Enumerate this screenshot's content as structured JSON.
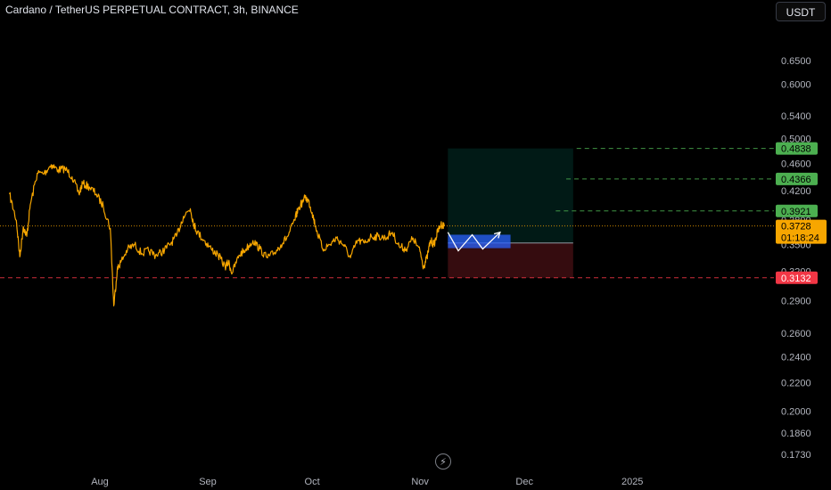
{
  "header": {
    "title": "Cardano / TetherUS PERPETUAL CONTRACT, 3h, BINANCE"
  },
  "controls": {
    "currency": "USDT"
  },
  "colors": {
    "price": "#f7a600",
    "target": "#4caf50",
    "stop": "#f23645",
    "position": "#2962ff"
  },
  "icons": {
    "bottom": "lightning-bolt-icon"
  },
  "chart_data": {
    "type": "line",
    "y_scale": "log",
    "y_ticks": [
      {
        "value": 0.65,
        "label": "0.6500"
      },
      {
        "value": 0.6,
        "label": "0.6000"
      },
      {
        "value": 0.54,
        "label": "0.5400"
      },
      {
        "value": 0.5,
        "label": "0.5000"
      },
      {
        "value": 0.46,
        "label": "0.4600"
      },
      {
        "value": 0.42,
        "label": "0.4200"
      },
      {
        "value": 0.38,
        "label": "0.3800"
      },
      {
        "value": 0.35,
        "label": "0.3500"
      },
      {
        "value": 0.32,
        "label": "0.3200"
      },
      {
        "value": 0.29,
        "label": "0.2900"
      },
      {
        "value": 0.26,
        "label": "0.2600"
      },
      {
        "value": 0.24,
        "label": "0.2400"
      },
      {
        "value": 0.22,
        "label": "0.2200"
      },
      {
        "value": 0.2,
        "label": "0.2000"
      },
      {
        "value": 0.186,
        "label": "0.1860"
      },
      {
        "value": 0.173,
        "label": "0.1730"
      }
    ],
    "x_ticks": [
      {
        "date": "2024-08-01",
        "label": "Aug"
      },
      {
        "date": "2024-09-01",
        "label": "Sep"
      },
      {
        "date": "2024-10-01",
        "label": "Oct"
      },
      {
        "date": "2024-11-01",
        "label": "Nov"
      },
      {
        "date": "2024-12-01",
        "label": "Dec"
      },
      {
        "date": "2025-01-01",
        "label": "2025"
      }
    ],
    "series": [
      {
        "points": [
          [
            "2024-07-06",
            0.415
          ],
          [
            "2024-07-08",
            0.38
          ],
          [
            "2024-07-09",
            0.336
          ],
          [
            "2024-07-10",
            0.372
          ],
          [
            "2024-07-11",
            0.36
          ],
          [
            "2024-07-12",
            0.4
          ],
          [
            "2024-07-14",
            0.445
          ],
          [
            "2024-07-16",
            0.445
          ],
          [
            "2024-07-18",
            0.458
          ],
          [
            "2024-07-20",
            0.45
          ],
          [
            "2024-07-22",
            0.452
          ],
          [
            "2024-07-24",
            0.44
          ],
          [
            "2024-07-26",
            0.415
          ],
          [
            "2024-07-27",
            0.43
          ],
          [
            "2024-07-29",
            0.425
          ],
          [
            "2024-07-31",
            0.415
          ],
          [
            "2024-08-02",
            0.398
          ],
          [
            "2024-08-04",
            0.37
          ],
          [
            "2024-08-05",
            0.285
          ],
          [
            "2024-08-06",
            0.322
          ],
          [
            "2024-08-07",
            0.33
          ],
          [
            "2024-08-09",
            0.345
          ],
          [
            "2024-08-11",
            0.35
          ],
          [
            "2024-08-13",
            0.34
          ],
          [
            "2024-08-15",
            0.343
          ],
          [
            "2024-08-17",
            0.338
          ],
          [
            "2024-08-19",
            0.342
          ],
          [
            "2024-08-21",
            0.35
          ],
          [
            "2024-08-23",
            0.36
          ],
          [
            "2024-08-25",
            0.385
          ],
          [
            "2024-08-27",
            0.395
          ],
          [
            "2024-08-28",
            0.375
          ],
          [
            "2024-08-29",
            0.365
          ],
          [
            "2024-08-31",
            0.355
          ],
          [
            "2024-09-02",
            0.345
          ],
          [
            "2024-09-04",
            0.338
          ],
          [
            "2024-09-06",
            0.325
          ],
          [
            "2024-09-07",
            0.33
          ],
          [
            "2024-09-08",
            0.318
          ],
          [
            "2024-09-10",
            0.338
          ],
          [
            "2024-09-12",
            0.345
          ],
          [
            "2024-09-14",
            0.355
          ],
          [
            "2024-09-16",
            0.345
          ],
          [
            "2024-09-18",
            0.335
          ],
          [
            "2024-09-20",
            0.34
          ],
          [
            "2024-09-22",
            0.35
          ],
          [
            "2024-09-24",
            0.36
          ],
          [
            "2024-09-26",
            0.38
          ],
          [
            "2024-09-27",
            0.395
          ],
          [
            "2024-09-29",
            0.41
          ],
          [
            "2024-09-30",
            0.405
          ],
          [
            "2024-10-01",
            0.39
          ],
          [
            "2024-10-02",
            0.372
          ],
          [
            "2024-10-04",
            0.345
          ],
          [
            "2024-10-06",
            0.35
          ],
          [
            "2024-10-08",
            0.358
          ],
          [
            "2024-10-10",
            0.35
          ],
          [
            "2024-10-12",
            0.335
          ],
          [
            "2024-10-14",
            0.355
          ],
          [
            "2024-10-16",
            0.352
          ],
          [
            "2024-10-18",
            0.36
          ],
          [
            "2024-10-20",
            0.36
          ],
          [
            "2024-10-22",
            0.358
          ],
          [
            "2024-10-24",
            0.365
          ],
          [
            "2024-10-26",
            0.348
          ],
          [
            "2024-10-28",
            0.345
          ],
          [
            "2024-10-30",
            0.358
          ],
          [
            "2024-11-01",
            0.342
          ],
          [
            "2024-11-02",
            0.325
          ],
          [
            "2024-11-03",
            0.335
          ],
          [
            "2024-11-04",
            0.355
          ],
          [
            "2024-11-05",
            0.35
          ],
          [
            "2024-11-06",
            0.365
          ],
          [
            "2024-11-07",
            0.375
          ],
          [
            "2024-11-08",
            0.3728
          ]
        ]
      }
    ],
    "last_price": {
      "value": 0.3728,
      "label": "0.3728",
      "countdown": "01:18:24"
    },
    "stop_level": {
      "value": 0.3132,
      "label": "0.3132"
    },
    "targets": [
      {
        "value": 0.4838,
        "label": "0.4838",
        "from": "2024-12-16"
      },
      {
        "value": 0.4366,
        "label": "0.4366",
        "from": "2024-12-13"
      },
      {
        "value": 0.3921,
        "label": "0.3921",
        "from": "2024-12-10"
      }
    ],
    "position": {
      "start": "2024-11-09",
      "end": "2024-12-15",
      "entry": 0.352,
      "target": 0.4838,
      "stop": 0.3132
    },
    "entry_zone": {
      "start": "2024-11-09",
      "end": "2024-11-27",
      "top": 0.362,
      "bottom": 0.346
    },
    "projection": [
      [
        "2024-11-09",
        0.365
      ],
      [
        "2024-11-12",
        0.343
      ],
      [
        "2024-11-16",
        0.362
      ],
      [
        "2024-11-19",
        0.345
      ],
      [
        "2024-11-24",
        0.365
      ]
    ]
  }
}
